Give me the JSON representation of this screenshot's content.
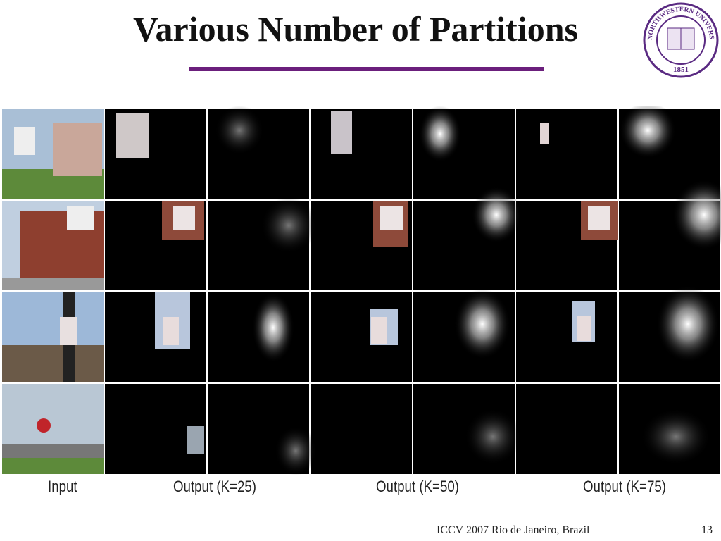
{
  "header": {
    "title": "Various Number of Partitions"
  },
  "logo": {
    "name": "NORTHWESTERN UNIVERSITY",
    "year": "1851"
  },
  "captions": [
    "Input",
    "Output (K=25)",
    "Output (K=50)",
    "Output (K=75)"
  ],
  "footer": {
    "venue": "ICCV 2007 Rio de Janeiro, Brazil",
    "page": "13"
  }
}
